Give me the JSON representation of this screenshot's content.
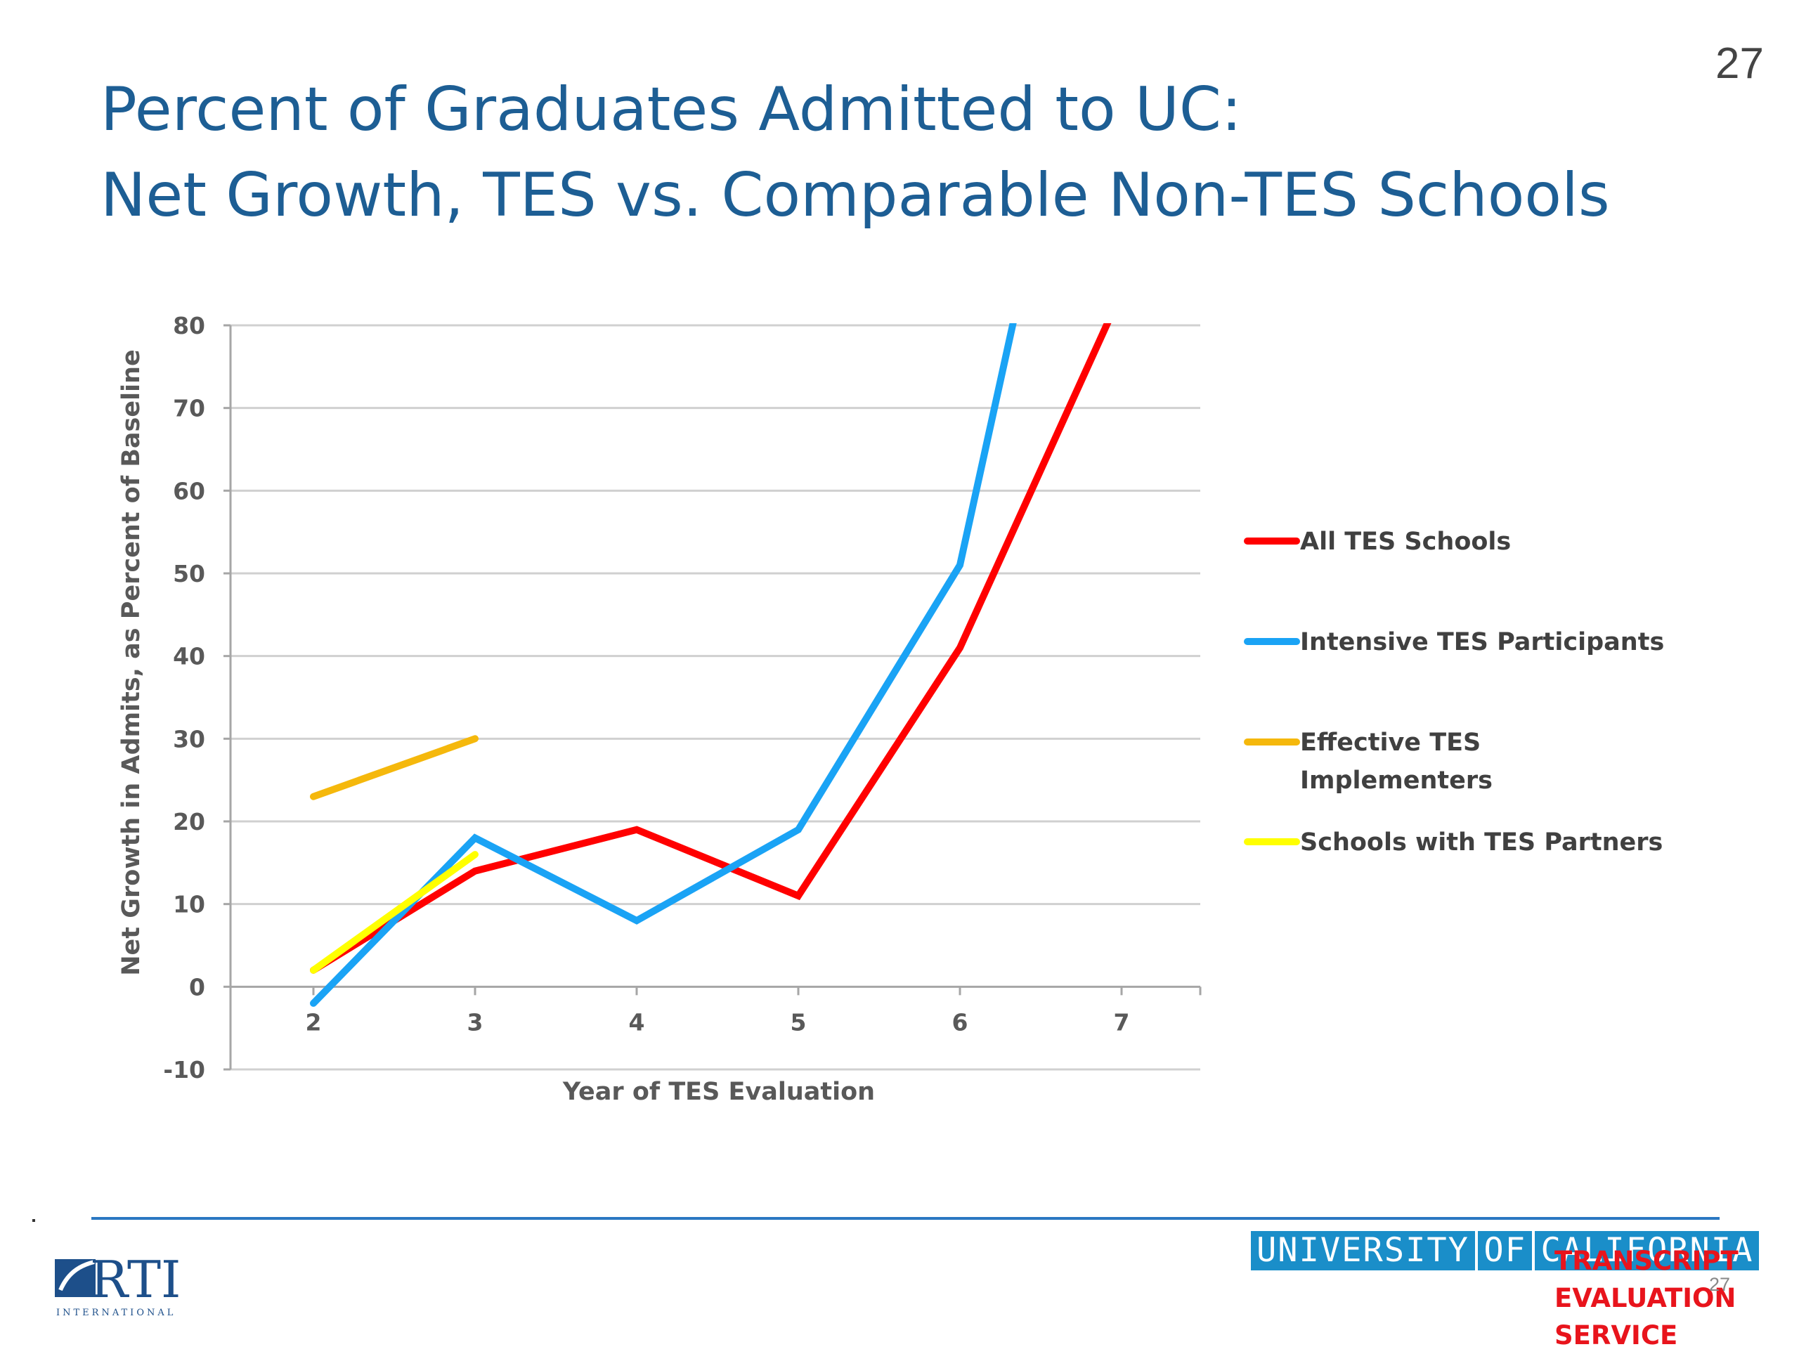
{
  "page_number": "27",
  "title": {
    "line1": "Percent of Graduates Admitted to UC:",
    "line2": "Net Growth, TES vs. Comparable Non-TES Schools"
  },
  "chart_data": {
    "type": "line",
    "title": "",
    "xlabel": "Year of TES Evaluation",
    "ylabel": "Net Growth in Admits, as Percent of Baseline",
    "x_ticks": [
      2,
      3,
      4,
      5,
      6,
      7
    ],
    "y_ticks": [
      -10,
      0,
      10,
      20,
      30,
      40,
      50,
      60,
      70,
      80
    ],
    "xlim": [
      1.5,
      7.5
    ],
    "ylim": [
      -10,
      80
    ],
    "grid": true,
    "legend_position": "right",
    "series": [
      {
        "name": "All TES Schools",
        "color": "#ff0000",
        "x": [
          2,
          3,
          4,
          5,
          6,
          7
        ],
        "y": [
          2,
          14,
          19,
          11,
          41,
          84
        ]
      },
      {
        "name": "Intensive TES Participants",
        "color": "#1aa3f5",
        "x": [
          2,
          3,
          4,
          5,
          6,
          7
        ],
        "y": [
          -2,
          18,
          8,
          19,
          51,
          140
        ]
      },
      {
        "name": "Effective TES Implementers",
        "color": "#f5b80c",
        "x": [
          2,
          3
        ],
        "y": [
          23,
          30
        ]
      },
      {
        "name": "Schools with TES Partners",
        "color": "#ffff00",
        "x": [
          2,
          3
        ],
        "y": [
          2,
          16
        ]
      }
    ]
  },
  "footer": {
    "rti_logo_text": "RTI",
    "rti_sub": "INTERNATIONAL",
    "uc_lines": [
      "UNIVERSITY",
      "OF",
      "CALIFORNIA"
    ],
    "tes_lines": [
      "TRANSCRIPT",
      "EVALUATION",
      "SERVICE"
    ],
    "small_page_number": "27"
  }
}
